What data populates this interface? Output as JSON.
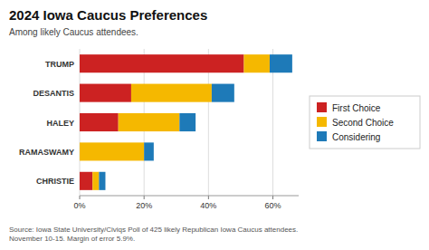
{
  "chart_data": {
    "type": "bar",
    "orientation": "horizontal",
    "stacked": true,
    "title": "2024 Iowa Caucus Preferences",
    "subtitle": "Among likely Caucus attendees.",
    "source": "Source: Iowa State University/Civiqs Poll of 425 likely Republican Iowa Caucus attendees.\nNovember 10-15. Margin of error 5.9%.",
    "categories": [
      "TRUMP",
      "DESANTIS",
      "HALEY",
      "RAMASWAMY",
      "CHRISTIE"
    ],
    "series": [
      {
        "name": "First Choice",
        "color": "#cc2222",
        "values": [
          51,
          16,
          12,
          0,
          4
        ]
      },
      {
        "name": "Second Choice",
        "color": "#f5b800",
        "values": [
          8,
          25,
          19,
          20,
          2
        ]
      },
      {
        "name": "Considering",
        "color": "#1e7ab8",
        "values": [
          7,
          7,
          5,
          3,
          2
        ]
      }
    ],
    "xlim": [
      0,
      68
    ],
    "xticks": [
      {
        "value": 0,
        "label": "0%"
      },
      {
        "value": 20,
        "label": "20%"
      },
      {
        "value": 40,
        "label": "40%"
      },
      {
        "value": 60,
        "label": "60%"
      }
    ],
    "grid": true,
    "legend": "right"
  }
}
